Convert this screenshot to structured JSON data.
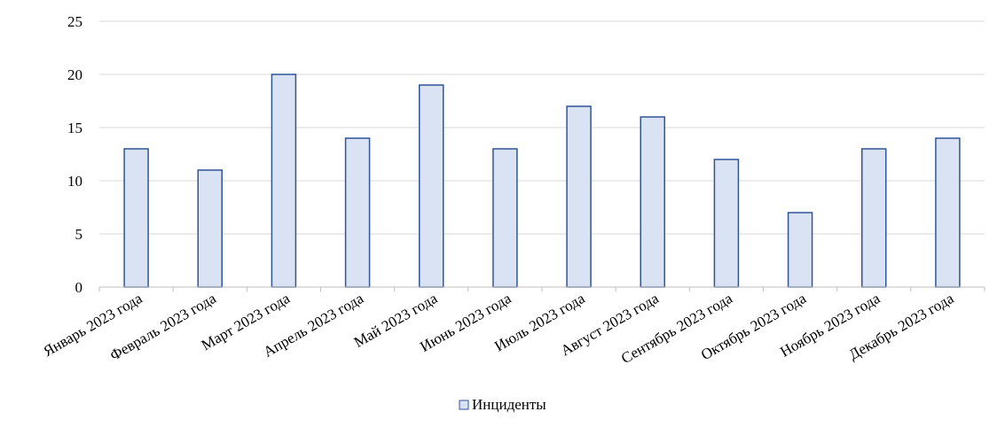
{
  "chart_data": {
    "type": "bar",
    "categories": [
      "Январь 2023 года",
      "Февраль 2023 года",
      "Март 2023 года",
      "Апрель 2023 года",
      "Май 2023 года",
      "Июнь 2023 года",
      "Июль 2023 года",
      "Август 2023 года",
      "Сентябрь 2023 года",
      "Октябрь 2023 года",
      "Ноябрь 2023 года",
      "Декабрь 2023 года"
    ],
    "series": [
      {
        "name": "Инциденты",
        "values": [
          13,
          11,
          20,
          14,
          19,
          13,
          17,
          16,
          12,
          7,
          13,
          14
        ]
      }
    ],
    "title": "",
    "xlabel": "",
    "ylabel": "",
    "ylim": [
      0,
      25
    ],
    "yticks": [
      0,
      5,
      10,
      15,
      20,
      25
    ],
    "grid": true,
    "legend_position": "bottom",
    "colors": {
      "bar_fill": "#dae3f3",
      "bar_stroke": "#2f5597",
      "grid": "#d9d9d9",
      "axis": "#bfbfbf"
    }
  }
}
